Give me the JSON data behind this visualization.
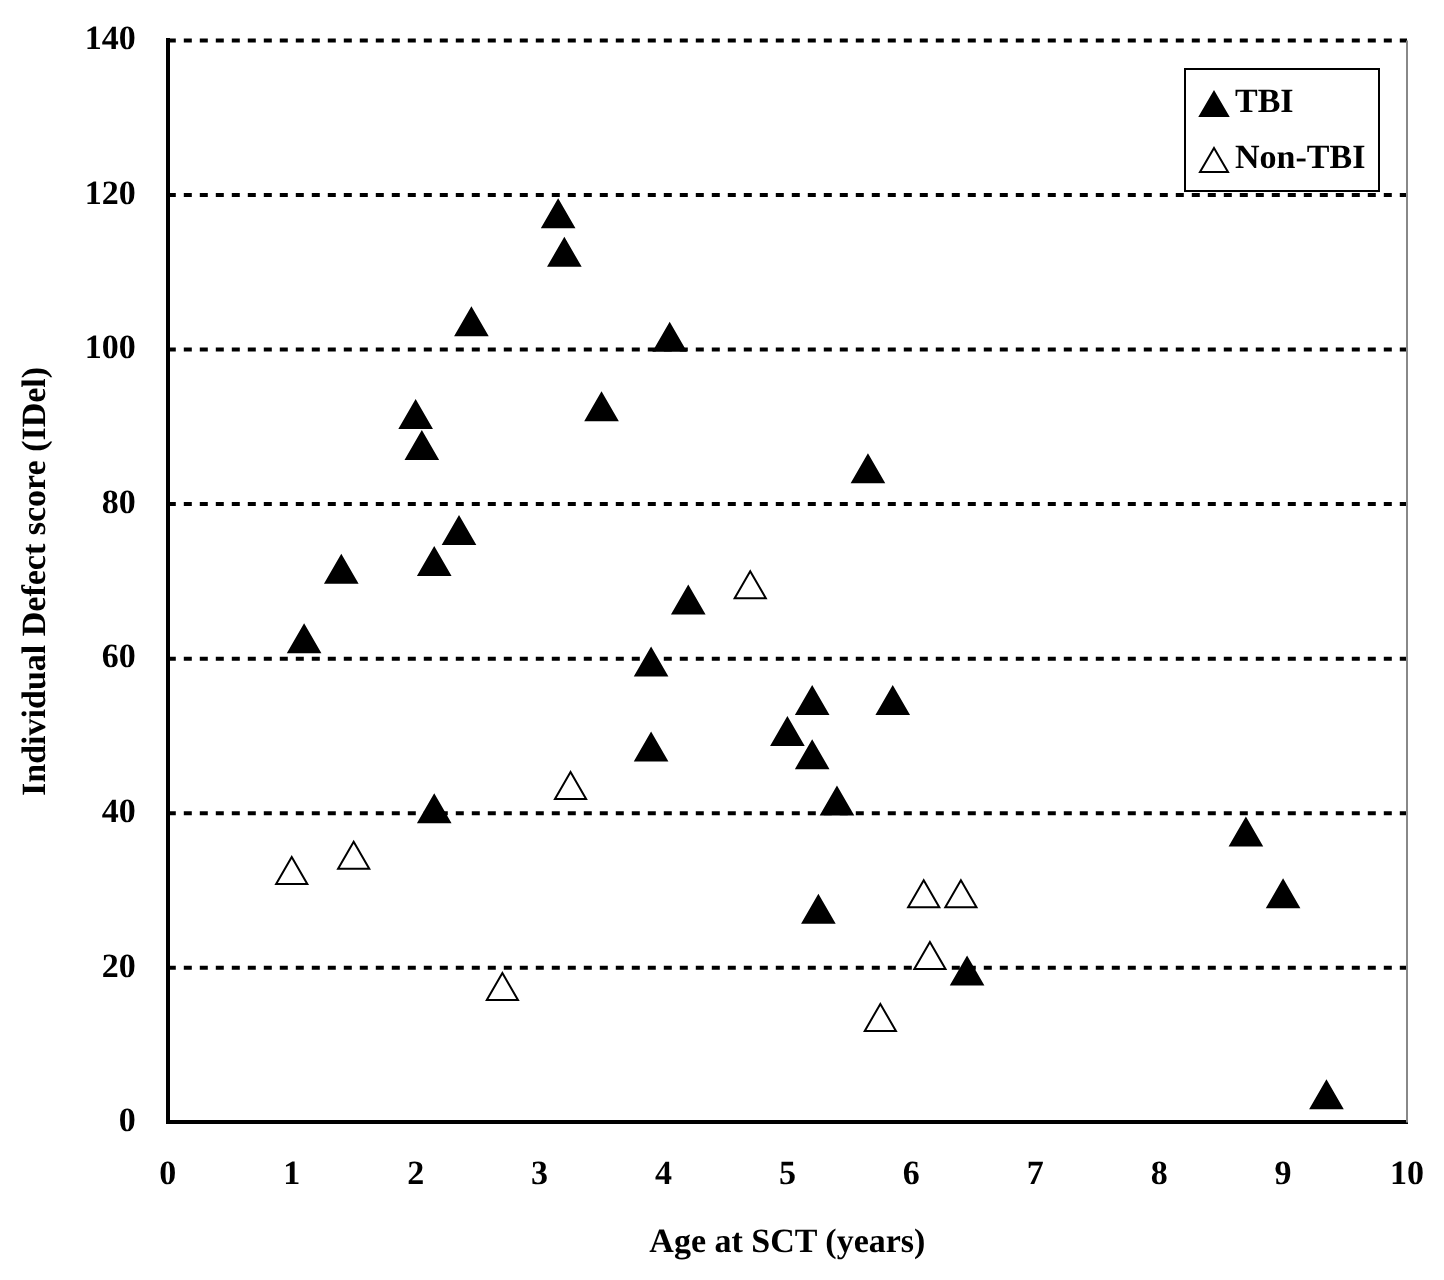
{
  "chart_data": {
    "type": "scatter",
    "xlabel": "Age at SCT (years)",
    "ylabel": "Individual Defect score (IDel)",
    "xlim": [
      0,
      10
    ],
    "xticks": [
      0,
      1,
      2,
      3,
      4,
      5,
      6,
      7,
      8,
      9,
      10
    ],
    "ylim": [
      0,
      140
    ],
    "yticks": [
      0,
      20,
      40,
      60,
      80,
      100,
      120,
      140
    ],
    "grid": "y",
    "legend": "top right",
    "marker": "triangle",
    "series": [
      {
        "name": "TBI",
        "color": "#000000",
        "x": [
          1.1,
          1.4,
          2.0,
          2.05,
          2.15,
          2.35,
          2.15,
          2.45,
          3.15,
          3.2,
          3.5,
          4.05,
          3.9,
          3.9,
          4.2,
          5.0,
          5.2,
          5.2,
          5.4,
          5.25,
          5.65,
          5.85,
          6.45,
          8.7,
          9.0,
          9.35
        ],
        "values": [
          62,
          71,
          91,
          87,
          72,
          76,
          40,
          103,
          117,
          112,
          92,
          101,
          59,
          48,
          67,
          50,
          54,
          47,
          41,
          27,
          84,
          54,
          19,
          37,
          29,
          3
        ]
      },
      {
        "name": "Non-TBI",
        "color": "#ffffff",
        "x": [
          1.0,
          1.5,
          2.7,
          3.25,
          4.7,
          5.75,
          6.1,
          6.4,
          6.15
        ],
        "values": [
          32,
          34,
          17,
          43,
          69,
          13,
          29,
          29,
          21
        ]
      }
    ]
  }
}
